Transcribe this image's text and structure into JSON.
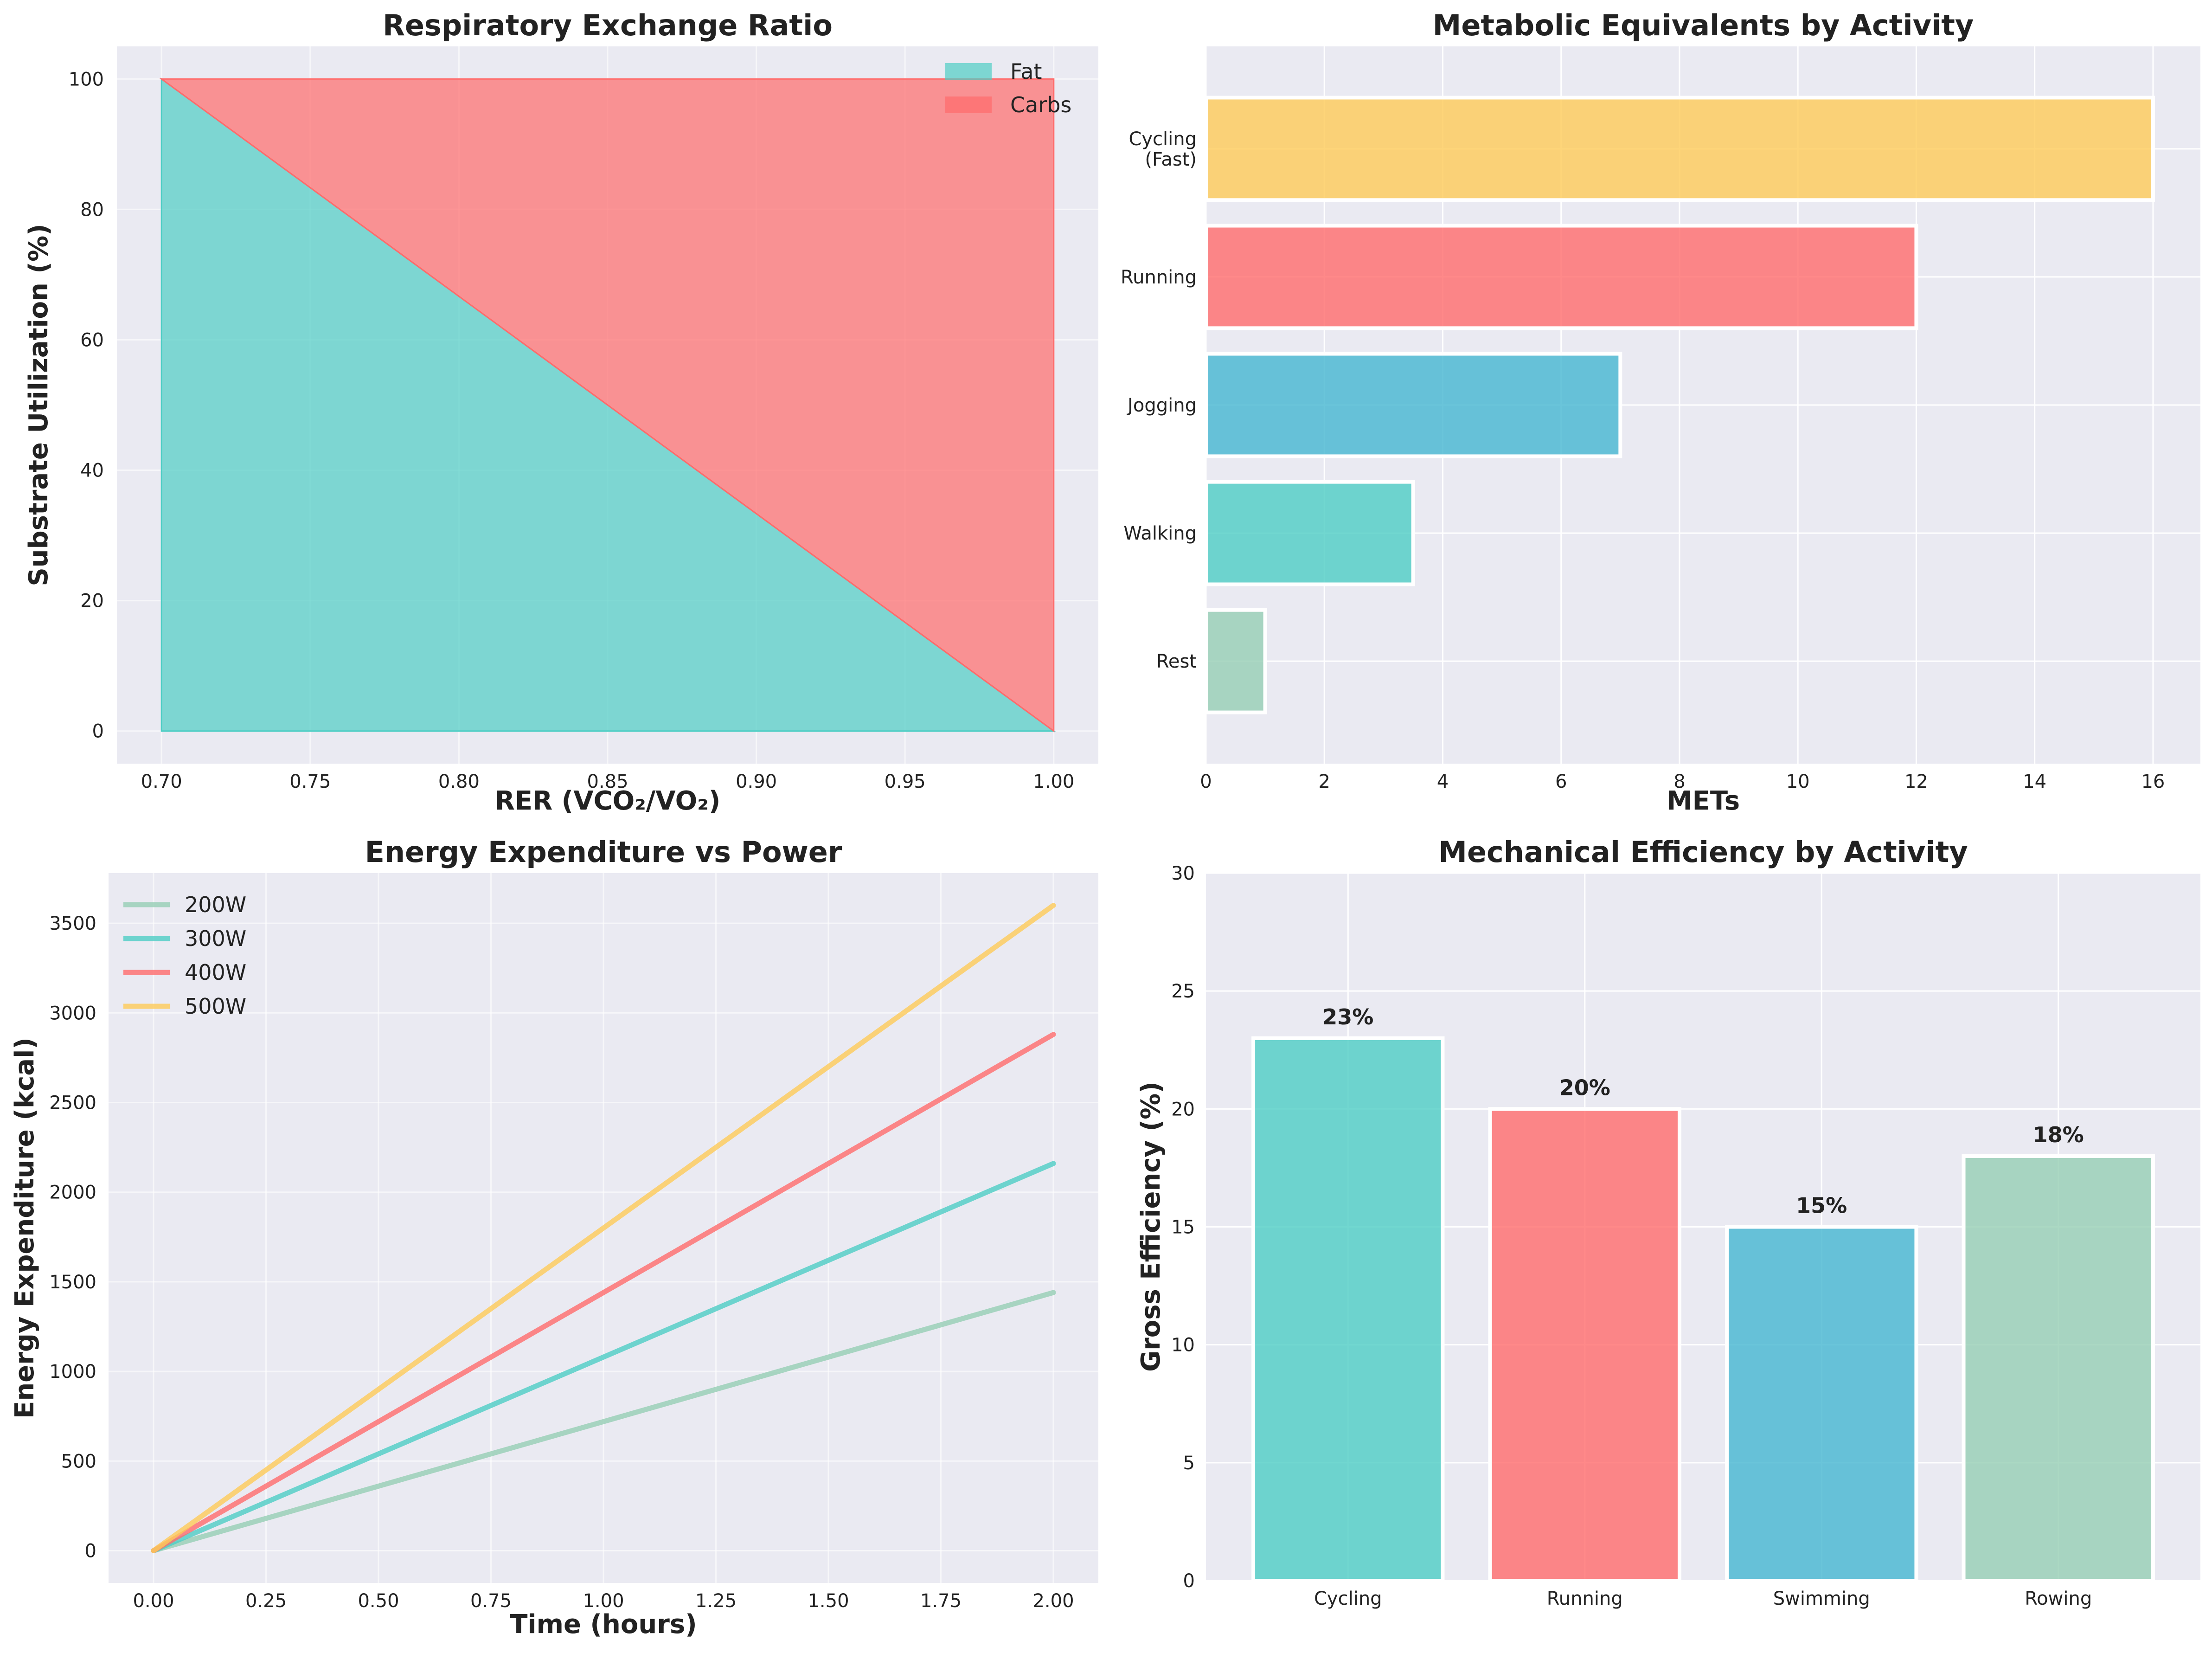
{
  "chart_data": [
    {
      "type": "area",
      "title": "Respiratory Exchange Ratio",
      "xlabel": "RER (VCO₂/VO₂)",
      "ylabel": "Substrate Utilization (%)",
      "x": [
        0.7,
        1.0
      ],
      "xlim": [
        0.685,
        1.015
      ],
      "ylim": [
        -5,
        105
      ],
      "xticks": [
        "0.70",
        "0.75",
        "0.80",
        "0.85",
        "0.90",
        "0.95",
        "1.00"
      ],
      "yticks": [
        "0",
        "20",
        "40",
        "60",
        "80",
        "100"
      ],
      "series": [
        {
          "name": "Fat",
          "values": [
            100,
            0
          ],
          "color": "#4ECDC4"
        },
        {
          "name": "Carbs",
          "values": [
            0,
            100
          ],
          "color": "#FF6B6B"
        }
      ],
      "stacked": true,
      "legend": "top-right",
      "grid": true
    },
    {
      "type": "bar",
      "orientation": "horizontal",
      "title": "Metabolic Equivalents by Activity",
      "xlabel": "METs",
      "categories": [
        "Rest",
        "Walking",
        "Jogging",
        "Running",
        "Cycling\n(Fast)"
      ],
      "values": [
        1,
        3.5,
        7,
        12,
        16
      ],
      "colors": [
        "#96CEB4",
        "#4ECDC4",
        "#45B7D1",
        "#FF6B6B",
        "#FECA57"
      ],
      "xlim": [
        0,
        16.8
      ],
      "xticks": [
        "0",
        "2",
        "4",
        "6",
        "8",
        "10",
        "12",
        "14",
        "16"
      ],
      "grid": true
    },
    {
      "type": "line",
      "title": "Energy Expenditure vs Power",
      "xlabel": "Time (hours)",
      "ylabel": "Energy Expenditure (kcal)",
      "x": [
        0,
        2
      ],
      "xlim": [
        -0.1,
        2.1
      ],
      "ylim": [
        -180,
        3780
      ],
      "xticks": [
        "0.00",
        "0.25",
        "0.50",
        "0.75",
        "1.00",
        "1.25",
        "1.50",
        "1.75",
        "2.00"
      ],
      "yticks": [
        "0",
        "500",
        "1000",
        "1500",
        "2000",
        "2500",
        "3000",
        "3500"
      ],
      "series": [
        {
          "name": "200W",
          "values": [
            0,
            1440
          ],
          "color": "#96CEB4"
        },
        {
          "name": "300W",
          "values": [
            0,
            2160
          ],
          "color": "#4ECDC4"
        },
        {
          "name": "400W",
          "values": [
            0,
            2880
          ],
          "color": "#FF6B6B"
        },
        {
          "name": "500W",
          "values": [
            0,
            3600
          ],
          "color": "#FECA57"
        }
      ],
      "legend": "top-left",
      "grid": true
    },
    {
      "type": "bar",
      "title": "Mechanical Efficiency by Activity",
      "ylabel": "Gross Efficiency (%)",
      "categories": [
        "Cycling",
        "Running",
        "Swimming",
        "Rowing"
      ],
      "values": [
        23,
        20,
        15,
        18
      ],
      "data_labels": [
        "23%",
        "20%",
        "15%",
        "18%"
      ],
      "colors": [
        "#4ECDC4",
        "#FF6B6B",
        "#45B7D1",
        "#96CEB4"
      ],
      "ylim": [
        0,
        30
      ],
      "yticks": [
        "0",
        "5",
        "10",
        "15",
        "20",
        "25",
        "30"
      ],
      "grid": true
    }
  ]
}
